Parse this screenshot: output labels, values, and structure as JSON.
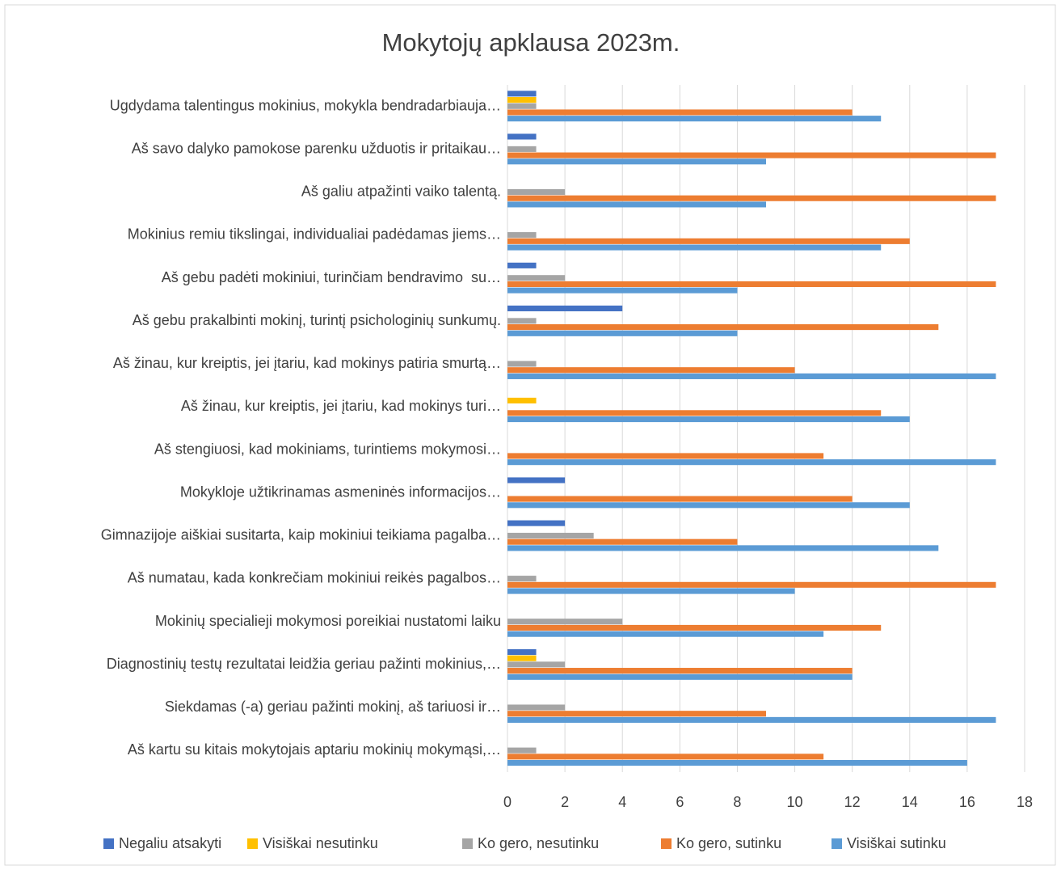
{
  "chart_data": {
    "type": "bar",
    "orientation": "horizontal",
    "title": "Mokytojų apklausa 2023m.",
    "categories": [
      "Ugdydama talentingus mokinius, mokykla bendradarbiauja…",
      "Aš savo dalyko pamokose parenku užduotis ir pritaikau…",
      "Aš galiu atpažinti vaiko talentą.",
      "Mokinius remiu tikslingai, individualiai padėdamas jiems…",
      "Aš gebu padėti mokiniui, turinčiam bendravimo  su…",
      "Aš gebu prakalbinti mokinį, turintį psichologinių sunkumų.",
      "Aš žinau, kur kreiptis, jei įtariu, kad mokinys patiria smurtą…",
      "Aš žinau, kur kreiptis, jei įtariu, kad mokinys turi…",
      "Aš stengiuosi, kad mokiniams, turintiems mokymosi…",
      "Mokykloje užtikrinamas asmeninės informacijos…",
      "Gimnazijoje aiškiai susitarta, kaip mokiniui teikiama pagalba…",
      "Aš numatau, kada konkrečiam mokiniui reikės pagalbos…",
      "Mokinių specialieji mokymosi poreikiai nustatomi laiku",
      "Diagnostinių testų rezultatai leidžia geriau pažinti mokinius,…",
      "Siekdamas (-a) geriau pažinti mokinį, aš tariuosi ir…",
      "Aš kartu su kitais mokytojais aptariu mokinių mokymąsi,…"
    ],
    "series": [
      {
        "name": "Negaliu atsakyti",
        "color": "#4472c4",
        "values": [
          1,
          1,
          0,
          0,
          1,
          4,
          0,
          0,
          0,
          2,
          2,
          0,
          0,
          1,
          0,
          0
        ]
      },
      {
        "name": "Visiškai nesutinku",
        "color": "#ffc000",
        "values": [
          1,
          0,
          0,
          0,
          0,
          0,
          0,
          1,
          0,
          0,
          0,
          0,
          0,
          1,
          0,
          0
        ]
      },
      {
        "name": "Ko gero, nesutinku",
        "color": "#a5a5a5",
        "values": [
          1,
          1,
          2,
          1,
          2,
          1,
          1,
          0,
          0,
          0,
          3,
          1,
          4,
          2,
          2,
          1
        ]
      },
      {
        "name": "Ko gero, sutinku",
        "color": "#ed7d31",
        "values": [
          12,
          17,
          17,
          14,
          17,
          15,
          10,
          13,
          11,
          12,
          8,
          17,
          13,
          12,
          9,
          11
        ]
      },
      {
        "name": "Visiškai sutinku",
        "color": "#5b9bd5",
        "values": [
          13,
          9,
          9,
          13,
          8,
          8,
          17,
          14,
          17,
          14,
          15,
          10,
          11,
          12,
          17,
          16
        ]
      }
    ],
    "xlim": [
      0,
      18
    ],
    "xticks": [
      0,
      2,
      4,
      6,
      8,
      10,
      12,
      14,
      16,
      18
    ],
    "grid": true,
    "legend": "bottom"
  }
}
